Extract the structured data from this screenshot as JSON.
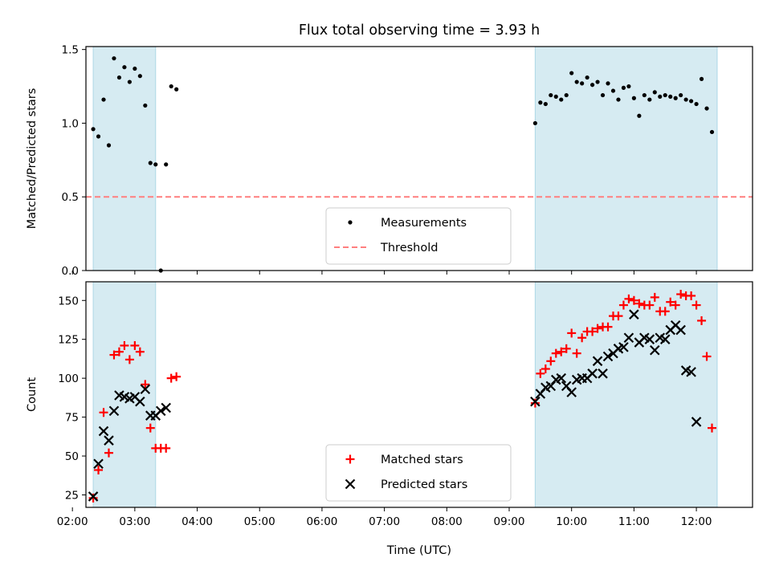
{
  "title": "Flux total observing time = 3.93 h",
  "colors": {
    "measurement": "#000000",
    "threshold": "#ff7f7f",
    "matched": "#ff0000",
    "predicted": "#000000",
    "band_fill": "#add8e6"
  },
  "chart_data": [
    {
      "type": "scatter",
      "panel": "top",
      "ylabel": "Matched/Predicted stars",
      "xlabel": "",
      "xlim": [
        "02:13",
        "12:54"
      ],
      "ylim": [
        0,
        1.52
      ],
      "yticks": [
        0.0,
        0.5,
        1.0,
        1.5
      ],
      "ytick_labels": [
        "0.0",
        "0.5",
        "1.0",
        "1.5"
      ],
      "shaded_intervals": [
        [
          "02:20",
          "03:20"
        ],
        [
          "09:25",
          "12:20"
        ]
      ],
      "threshold": 0.5,
      "legend_position": "lower center",
      "legend": {
        "measurements": "Measurements",
        "threshold": "Threshold"
      },
      "series": [
        {
          "name": "Measurements",
          "points": [
            [
              "02:20",
              0.96
            ],
            [
              "02:25",
              0.91
            ],
            [
              "02:30",
              1.16
            ],
            [
              "02:35",
              0.85
            ],
            [
              "02:40",
              1.44
            ],
            [
              "02:45",
              1.31
            ],
            [
              "02:50",
              1.38
            ],
            [
              "02:55",
              1.28
            ],
            [
              "03:00",
              1.37
            ],
            [
              "03:05",
              1.32
            ],
            [
              "03:10",
              1.12
            ],
            [
              "03:15",
              0.73
            ],
            [
              "03:20",
              0.72
            ],
            [
              "03:25",
              0.0
            ],
            [
              "03:30",
              0.72
            ],
            [
              "03:35",
              1.25
            ],
            [
              "03:40",
              1.23
            ],
            [
              "09:25",
              1.0
            ],
            [
              "09:30",
              1.14
            ],
            [
              "09:35",
              1.13
            ],
            [
              "09:40",
              1.19
            ],
            [
              "09:45",
              1.18
            ],
            [
              "09:50",
              1.16
            ],
            [
              "09:55",
              1.19
            ],
            [
              "10:00",
              1.34
            ],
            [
              "10:05",
              1.28
            ],
            [
              "10:10",
              1.27
            ],
            [
              "10:15",
              1.31
            ],
            [
              "10:20",
              1.26
            ],
            [
              "10:25",
              1.28
            ],
            [
              "10:30",
              1.19
            ],
            [
              "10:35",
              1.27
            ],
            [
              "10:40",
              1.22
            ],
            [
              "10:45",
              1.16
            ],
            [
              "10:50",
              1.24
            ],
            [
              "10:55",
              1.25
            ],
            [
              "11:00",
              1.17
            ],
            [
              "11:05",
              1.05
            ],
            [
              "11:10",
              1.19
            ],
            [
              "11:15",
              1.16
            ],
            [
              "11:20",
              1.21
            ],
            [
              "11:25",
              1.18
            ],
            [
              "11:30",
              1.19
            ],
            [
              "11:35",
              1.18
            ],
            [
              "11:40",
              1.17
            ],
            [
              "11:45",
              1.19
            ],
            [
              "11:50",
              1.16
            ],
            [
              "11:55",
              1.15
            ],
            [
              "12:00",
              1.13
            ],
            [
              "12:05",
              1.3
            ],
            [
              "12:10",
              1.1
            ],
            [
              "12:15",
              0.94
            ]
          ]
        }
      ]
    },
    {
      "type": "scatter",
      "panel": "bottom",
      "ylabel": "Count",
      "xlabel": "Time (UTC)",
      "xlim": [
        "02:13",
        "12:54"
      ],
      "ylim": [
        17,
        162
      ],
      "yticks": [
        25,
        50,
        75,
        100,
        125,
        150
      ],
      "ytick_labels": [
        "25",
        "50",
        "75",
        "100",
        "125",
        "150"
      ],
      "xticks": [
        "02:00",
        "03:00",
        "04:00",
        "05:00",
        "06:00",
        "07:00",
        "08:00",
        "09:00",
        "10:00",
        "11:00",
        "12:00"
      ],
      "xtick_labels": [
        "02:00",
        "03:00",
        "04:00",
        "05:00",
        "06:00",
        "07:00",
        "08:00",
        "09:00",
        "10:00",
        "11:00",
        "12:00"
      ],
      "shaded_intervals": [
        [
          "02:20",
          "03:20"
        ],
        [
          "09:25",
          "12:20"
        ]
      ],
      "legend_position": "lower center",
      "legend": {
        "matched": "Matched stars",
        "predicted": "Predicted stars"
      },
      "series": [
        {
          "name": "Matched stars",
          "points": [
            [
              "02:20",
              23
            ],
            [
              "02:25",
              41
            ],
            [
              "02:30",
              78
            ],
            [
              "02:35",
              52
            ],
            [
              "02:40",
              115
            ],
            [
              "02:45",
              117
            ],
            [
              "02:50",
              121
            ],
            [
              "02:55",
              112
            ],
            [
              "03:00",
              121
            ],
            [
              "03:05",
              117
            ],
            [
              "03:10",
              96
            ],
            [
              "03:15",
              68
            ],
            [
              "03:20",
              55
            ],
            [
              "03:25",
              55
            ],
            [
              "03:30",
              55
            ],
            [
              "03:35",
              100
            ],
            [
              "03:40",
              101
            ],
            [
              "09:25",
              84
            ],
            [
              "09:30",
              103
            ],
            [
              "09:35",
              106
            ],
            [
              "09:40",
              111
            ],
            [
              "09:45",
              116
            ],
            [
              "09:50",
              117
            ],
            [
              "09:55",
              119
            ],
            [
              "10:00",
              129
            ],
            [
              "10:05",
              116
            ],
            [
              "10:10",
              126
            ],
            [
              "10:15",
              130
            ],
            [
              "10:20",
              130
            ],
            [
              "10:25",
              132
            ],
            [
              "10:30",
              133
            ],
            [
              "10:35",
              133
            ],
            [
              "10:40",
              140
            ],
            [
              "10:45",
              140
            ],
            [
              "10:50",
              147
            ],
            [
              "10:55",
              151
            ],
            [
              "11:00",
              150
            ],
            [
              "11:05",
              148
            ],
            [
              "11:10",
              147
            ],
            [
              "11:15",
              147
            ],
            [
              "11:20",
              152
            ],
            [
              "11:25",
              143
            ],
            [
              "11:30",
              143
            ],
            [
              "11:35",
              149
            ],
            [
              "11:40",
              147
            ],
            [
              "11:45",
              154
            ],
            [
              "11:50",
              153
            ],
            [
              "11:55",
              153
            ],
            [
              "12:00",
              147
            ],
            [
              "12:05",
              137
            ],
            [
              "12:10",
              114
            ],
            [
              "12:15",
              68
            ]
          ]
        },
        {
          "name": "Predicted stars",
          "points": [
            [
              "02:20",
              24
            ],
            [
              "02:25",
              45
            ],
            [
              "02:30",
              66
            ],
            [
              "02:35",
              60
            ],
            [
              "02:40",
              79
            ],
            [
              "02:45",
              89
            ],
            [
              "02:50",
              88
            ],
            [
              "02:55",
              87
            ],
            [
              "03:00",
              88
            ],
            [
              "03:05",
              85
            ],
            [
              "03:10",
              93
            ],
            [
              "03:15",
              76
            ],
            [
              "03:20",
              76
            ],
            [
              "03:25",
              79
            ],
            [
              "03:30",
              81
            ],
            [
              "09:25",
              85
            ],
            [
              "09:30",
              90
            ],
            [
              "09:35",
              94
            ],
            [
              "09:40",
              95
            ],
            [
              "09:45",
              99
            ],
            [
              "09:50",
              100
            ],
            [
              "09:55",
              95
            ],
            [
              "10:00",
              91
            ],
            [
              "10:05",
              99
            ],
            [
              "10:10",
              100
            ],
            [
              "10:15",
              100
            ],
            [
              "10:20",
              103
            ],
            [
              "10:25",
              111
            ],
            [
              "10:30",
              103
            ],
            [
              "10:35",
              114
            ],
            [
              "10:40",
              116
            ],
            [
              "10:45",
              119
            ],
            [
              "10:50",
              120
            ],
            [
              "10:55",
              126
            ],
            [
              "11:00",
              141
            ],
            [
              "11:05",
              123
            ],
            [
              "11:10",
              126
            ],
            [
              "11:15",
              125
            ],
            [
              "11:20",
              118
            ],
            [
              "11:25",
              126
            ],
            [
              "11:30",
              125
            ],
            [
              "11:35",
              131
            ],
            [
              "11:40",
              134
            ],
            [
              "11:45",
              131
            ],
            [
              "11:50",
              105
            ],
            [
              "11:55",
              104
            ],
            [
              "12:00",
              72
            ]
          ]
        }
      ]
    }
  ]
}
